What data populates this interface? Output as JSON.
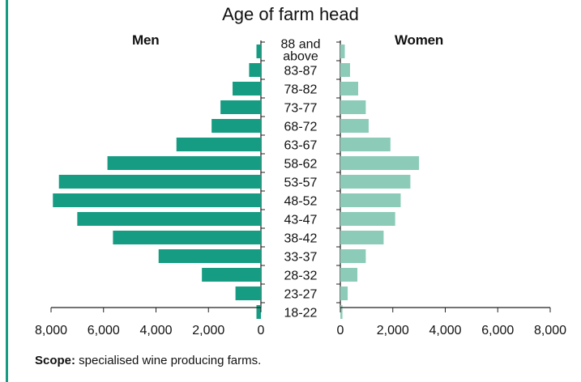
{
  "chart_data": {
    "type": "bar",
    "title": "Age of farm head",
    "categories": [
      "88 and above",
      "83-87",
      "78-82",
      "73-77",
      "68-72",
      "63-67",
      "58-62",
      "53-57",
      "48-52",
      "43-47",
      "38-42",
      "33-37",
      "28-32",
      "23-27",
      "18-22"
    ],
    "series": [
      {
        "name": "Men",
        "values": [
          170,
          450,
          1080,
          1540,
          1880,
          3220,
          5850,
          7700,
          7930,
          7000,
          5640,
          3900,
          2250,
          970,
          170
        ],
        "color": "#159c82"
      },
      {
        "name": "Women",
        "values": [
          170,
          370,
          680,
          970,
          1080,
          1910,
          3000,
          2670,
          2300,
          2090,
          1650,
          970,
          650,
          280,
          80
        ],
        "color": "#8ccbb8"
      }
    ],
    "xlim": [
      0,
      8000
    ],
    "xticks": [
      0,
      2000,
      4000,
      6000,
      8000
    ],
    "xtick_labels": [
      "0",
      "2,000",
      "4,000",
      "6,000",
      "8,000"
    ],
    "grid": false
  },
  "scope": {
    "label": "Scope:",
    "text": " specialised wine producing farms."
  }
}
